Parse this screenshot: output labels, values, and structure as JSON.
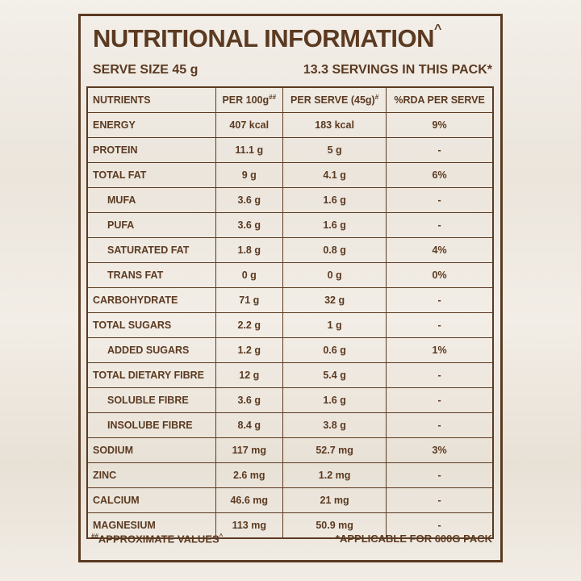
{
  "header": {
    "title": "NUTRITIONAL INFORMATION",
    "title_sup": "^",
    "serve_size": "SERVE SIZE 45 g",
    "servings": "13.3 SERVINGS IN THIS PACK*"
  },
  "table": {
    "columns": [
      {
        "text": "NUTRIENTS"
      },
      {
        "text": "PER 100g",
        "sup": "##"
      },
      {
        "text": "PER SERVE (45g)",
        "sup": "#"
      },
      {
        "text": "%RDA PER SERVE"
      }
    ],
    "rows": [
      {
        "level": 0,
        "cells": [
          "ENERGY",
          "407 kcal",
          "183 kcal",
          "9%"
        ]
      },
      {
        "level": 0,
        "cells": [
          "PROTEIN",
          "11.1 g",
          "5 g",
          "-"
        ]
      },
      {
        "level": 0,
        "cells": [
          "TOTAL FAT",
          "9 g",
          "4.1 g",
          "6%"
        ]
      },
      {
        "level": 1,
        "cells": [
          "MUFA",
          "3.6 g",
          "1.6 g",
          "-"
        ]
      },
      {
        "level": 1,
        "cells": [
          "PUFA",
          "3.6 g",
          "1.6 g",
          "-"
        ]
      },
      {
        "level": 1,
        "cells": [
          "SATURATED FAT",
          "1.8 g",
          "0.8 g",
          "4%"
        ]
      },
      {
        "level": 1,
        "cells": [
          "TRANS FAT",
          "0 g",
          "0 g",
          "0%"
        ]
      },
      {
        "level": 0,
        "cells": [
          "CARBOHYDRATE",
          "71 g",
          "32 g",
          "-"
        ]
      },
      {
        "level": 0,
        "cells": [
          "TOTAL SUGARS",
          "2.2 g",
          "1 g",
          "-"
        ]
      },
      {
        "level": 1,
        "cells": [
          "ADDED SUGARS",
          "1.2 g",
          "0.6 g",
          "1%"
        ]
      },
      {
        "level": 0,
        "cells": [
          "TOTAL DIETARY FIBRE",
          "12 g",
          "5.4 g",
          "-"
        ]
      },
      {
        "level": 1,
        "cells": [
          "SOLUBLE FIBRE",
          "3.6 g",
          "1.6 g",
          "-"
        ]
      },
      {
        "level": 1,
        "cells": [
          "INSOLUBE FIBRE",
          "8.4 g",
          "3.8 g",
          "-"
        ]
      },
      {
        "level": 0,
        "cells": [
          "SODIUM",
          "117 mg",
          "52.7 mg",
          "3%"
        ]
      },
      {
        "level": 0,
        "cells": [
          "ZINC",
          "2.6 mg",
          "1.2 mg",
          "-"
        ]
      },
      {
        "level": 0,
        "cells": [
          "CALCIUM",
          "46.6 mg",
          "21 mg",
          "-"
        ]
      },
      {
        "level": 0,
        "cells": [
          "MAGNESIUM",
          "113 mg",
          "50.9 mg",
          "-"
        ]
      }
    ]
  },
  "footer": {
    "left_sup": "##",
    "left": "APPROXIMATE VALUES",
    "left_end_sup": "^",
    "right": "*APPLICABLE FOR 600G PACK"
  }
}
